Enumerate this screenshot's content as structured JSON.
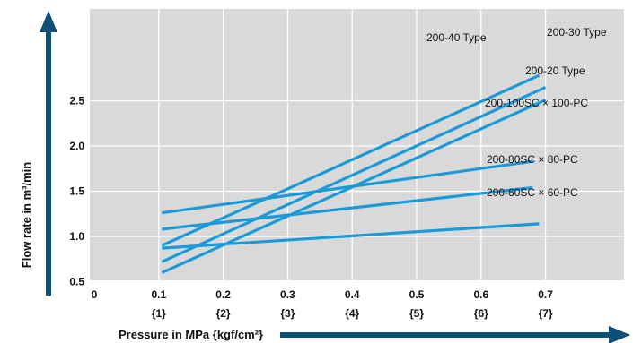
{
  "chart_data": {
    "type": "line",
    "xlabel": "Pressure in MPa {kgf/cm²}",
    "ylabel": "Flow rate in m³/min",
    "xlim": [
      0,
      0.8
    ],
    "ylim": [
      0,
      3.0
    ],
    "x_ticks": [
      {
        "value": 0,
        "label": "0",
        "sub": ""
      },
      {
        "value": 0.1,
        "label": "0.1",
        "sub": "{1}"
      },
      {
        "value": 0.2,
        "label": "0.2",
        "sub": "{2}"
      },
      {
        "value": 0.3,
        "label": "0.3",
        "sub": "{3}"
      },
      {
        "value": 0.4,
        "label": "0.4",
        "sub": "{4}"
      },
      {
        "value": 0.5,
        "label": "0.5",
        "sub": "{5}"
      },
      {
        "value": 0.6,
        "label": "0.6",
        "sub": "{6}"
      },
      {
        "value": 0.7,
        "label": "0.7",
        "sub": "{7}"
      }
    ],
    "y_ticks": [
      {
        "value": 0.5,
        "label": "0.5"
      },
      {
        "value": 1.0,
        "label": "1.0"
      },
      {
        "value": 1.5,
        "label": "1.5"
      },
      {
        "value": 2.0,
        "label": "2.0"
      },
      {
        "value": 2.5,
        "label": "2.5"
      }
    ],
    "grid": true,
    "colors": {
      "background": "#d9d9d9",
      "line": "#1a9ad8",
      "grid": "#ffffff",
      "arrow": "#0d4f77"
    },
    "series": [
      {
        "name": "200-40 Type",
        "x": [
          0.105,
          0.69
        ],
        "y": [
          0.9,
          2.78
        ]
      },
      {
        "name": "200-30 Type",
        "x": [
          0.105,
          0.7
        ],
        "y": [
          0.72,
          2.65
        ]
      },
      {
        "name": "200-20 Type",
        "x": [
          0.105,
          0.7
        ],
        "y": [
          0.6,
          2.51
        ]
      },
      {
        "name": "200-100SC × 100-PC",
        "x": [
          0.105,
          0.68
        ],
        "y": [
          1.26,
          1.83
        ]
      },
      {
        "name": "200-80SC × 80-PC",
        "x": [
          0.105,
          0.68
        ],
        "y": [
          1.08,
          1.54
        ]
      },
      {
        "name": "200-60SC × 60-PC",
        "x": [
          0.105,
          0.69
        ],
        "y": [
          0.87,
          1.14
        ]
      }
    ]
  }
}
